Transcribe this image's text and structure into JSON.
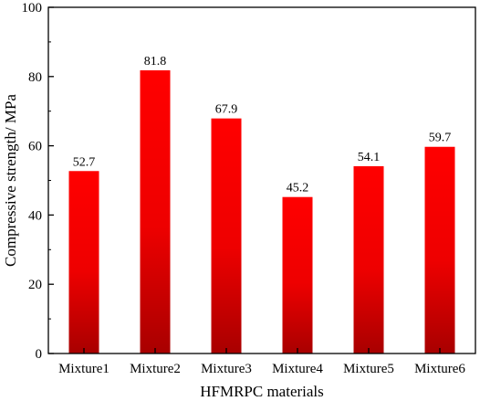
{
  "chart_data": {
    "type": "bar",
    "categories": [
      "Mixture1",
      "Mixture2",
      "Mixture3",
      "Mixture4",
      "Mixture5",
      "Mixture6"
    ],
    "values": [
      52.7,
      81.8,
      67.9,
      45.2,
      54.1,
      59.7
    ],
    "data_labels": [
      "52.7",
      "81.8",
      "67.9",
      "45.2",
      "54.1",
      "59.7"
    ],
    "title": "",
    "xlabel": "HFMRPC materials",
    "ylabel": "Compressive  strength/ MPa",
    "ylim": [
      0,
      100
    ],
    "yticks": [
      0,
      20,
      40,
      60,
      80,
      100
    ],
    "grid": false,
    "bar_color_top": "#ff0000",
    "bar_color_bottom": "#a80000",
    "axis_color": "#000000"
  }
}
